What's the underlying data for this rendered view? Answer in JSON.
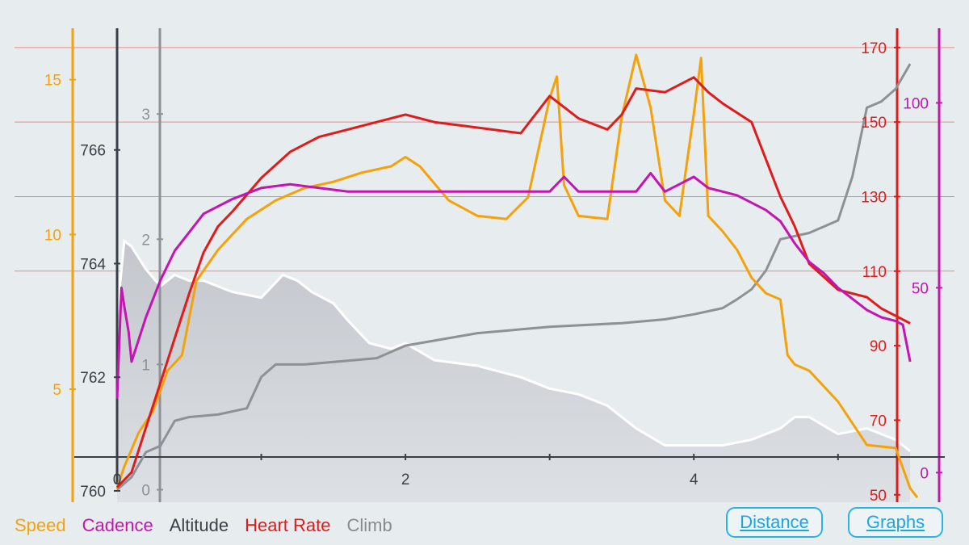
{
  "colors": {
    "speed": "#f5a20a",
    "cadence": "#c414b2",
    "altitude": "#3a3f47",
    "heart_rate": "#e01b1b",
    "climb": "#8a8a8a",
    "altitude_fill": "#c9ccd1",
    "accent": "#1aa6de"
  },
  "legend": {
    "speed": "Speed",
    "cadence": "Cadence",
    "altitude": "Altitude",
    "heart_rate": "Heart Rate",
    "climb": "Climb"
  },
  "buttons": {
    "distance": "Distance",
    "graphs": "Graphs"
  },
  "chart_data": {
    "type": "line",
    "xlim": [
      0,
      5.55
    ],
    "x_ticks": [
      "0",
      "2",
      "4"
    ],
    "x_tick_values": [
      0,
      2,
      4
    ],
    "axes": {
      "speed": {
        "ticks": [
          "5",
          "10",
          "15"
        ],
        "tick_values": [
          5,
          10,
          15
        ],
        "range": [
          1.35,
          16.4
        ]
      },
      "altitude": {
        "ticks": [
          "760",
          "762",
          "764",
          "766"
        ],
        "tick_values": [
          760,
          762,
          764,
          766
        ],
        "range": [
          759.8,
          768.0
        ]
      },
      "climb": {
        "ticks": [
          "0",
          "1",
          "2",
          "3"
        ],
        "tick_values": [
          0,
          1,
          2,
          3
        ],
        "range": [
          -0.1,
          3.62
        ]
      },
      "heart_rate": {
        "ticks": [
          "50",
          "70",
          "90",
          "110",
          "130",
          "150",
          "170"
        ],
        "tick_values": [
          50,
          70,
          90,
          110,
          130,
          150,
          170
        ],
        "range": [
          48,
          173
        ]
      },
      "cadence": {
        "ticks": [
          "0",
          "50",
          "100"
        ],
        "tick_values": [
          0,
          50,
          100
        ],
        "range": [
          -8,
          118
        ]
      }
    },
    "series": [
      {
        "name": "Altitude",
        "axis": "altitude",
        "x": [
          0,
          0.05,
          0.1,
          0.2,
          0.3,
          0.4,
          0.5,
          0.6,
          0.8,
          1.0,
          1.15,
          1.25,
          1.35,
          1.5,
          1.6,
          1.75,
          1.9,
          2.0,
          2.2,
          2.5,
          2.8,
          3.0,
          3.2,
          3.4,
          3.5,
          3.6,
          3.8,
          4.0,
          4.2,
          4.4,
          4.5,
          4.6,
          4.7,
          4.8,
          5.0,
          5.2,
          5.3,
          5.4,
          5.5
        ],
        "y": [
          763.1,
          764.4,
          764.3,
          763.9,
          763.6,
          763.8,
          763.7,
          763.7,
          763.5,
          763.4,
          763.8,
          763.7,
          763.5,
          763.3,
          763.0,
          762.6,
          762.5,
          762.6,
          762.3,
          762.2,
          762.0,
          761.8,
          761.7,
          761.5,
          761.3,
          761.1,
          760.8,
          760.8,
          760.8,
          760.9,
          761.0,
          761.1,
          761.3,
          761.3,
          761.0,
          761.1,
          761.0,
          760.9,
          760.7
        ]
      },
      {
        "name": "Climb",
        "axis": "climb",
        "x": [
          0,
          0.1,
          0.2,
          0.3,
          0.4,
          0.5,
          0.7,
          0.9,
          1.0,
          1.1,
          1.2,
          1.3,
          1.6,
          1.8,
          2.0,
          2.5,
          3.0,
          3.5,
          3.8,
          4.0,
          4.2,
          4.3,
          4.4,
          4.5,
          4.6,
          4.8,
          5.0,
          5.1,
          5.2,
          5.3,
          5.4,
          5.5
        ],
        "y": [
          0.0,
          0.1,
          0.3,
          0.35,
          0.55,
          0.58,
          0.6,
          0.65,
          0.9,
          1.0,
          1.0,
          1.0,
          1.03,
          1.05,
          1.15,
          1.25,
          1.3,
          1.33,
          1.36,
          1.4,
          1.45,
          1.52,
          1.6,
          1.75,
          2.0,
          2.05,
          2.15,
          2.5,
          3.05,
          3.1,
          3.2,
          3.4
        ]
      },
      {
        "name": "Speed",
        "axis": "speed",
        "x": [
          0,
          0.05,
          0.15,
          0.25,
          0.35,
          0.45,
          0.55,
          0.7,
          0.9,
          1.1,
          1.3,
          1.5,
          1.7,
          1.9,
          2.0,
          2.1,
          2.3,
          2.5,
          2.7,
          2.85,
          3.0,
          3.05,
          3.1,
          3.2,
          3.4,
          3.5,
          3.6,
          3.7,
          3.8,
          3.9,
          4.0,
          4.05,
          4.1,
          4.2,
          4.3,
          4.4,
          4.5,
          4.6,
          4.65,
          4.7,
          4.8,
          5.0,
          5.2,
          5.4,
          5.5,
          5.55
        ],
        "y": [
          1.8,
          2.5,
          3.6,
          4.3,
          5.6,
          6.1,
          8.5,
          9.5,
          10.5,
          11.1,
          11.5,
          11.7,
          12.0,
          12.2,
          12.5,
          12.2,
          11.1,
          10.6,
          10.5,
          11.2,
          14.4,
          15.1,
          11.6,
          10.6,
          10.5,
          13.8,
          15.8,
          14.1,
          11.1,
          10.6,
          13.9,
          15.7,
          10.6,
          10.1,
          9.5,
          8.6,
          8.1,
          7.9,
          6.1,
          5.8,
          5.6,
          4.6,
          3.2,
          3.1,
          1.8,
          1.5
        ]
      },
      {
        "name": "Heart Rate",
        "axis": "heart_rate",
        "x": [
          0,
          0.1,
          0.2,
          0.3,
          0.4,
          0.5,
          0.6,
          0.7,
          0.8,
          1.0,
          1.2,
          1.4,
          1.6,
          1.8,
          2.0,
          2.2,
          2.4,
          2.6,
          2.8,
          3.0,
          3.2,
          3.4,
          3.5,
          3.6,
          3.8,
          4.0,
          4.1,
          4.2,
          4.4,
          4.5,
          4.6,
          4.7,
          4.8,
          5.0,
          5.2,
          5.3,
          5.4,
          5.5
        ],
        "y": [
          52,
          56,
          68,
          80,
          92,
          104,
          115,
          122,
          126,
          135,
          142,
          146,
          148,
          150,
          152,
          150,
          149,
          148,
          147,
          157,
          151,
          148,
          152,
          159,
          158,
          162,
          158,
          155,
          150,
          140,
          130,
          122,
          112,
          105,
          103,
          100,
          98,
          96
        ]
      },
      {
        "name": "Cadence",
        "axis": "cadence",
        "x": [
          0,
          0.03,
          0.05,
          0.08,
          0.1,
          0.2,
          0.3,
          0.4,
          0.5,
          0.6,
          0.8,
          1.0,
          1.2,
          1.4,
          1.6,
          1.8,
          2.0,
          2.2,
          2.4,
          2.6,
          2.8,
          3.0,
          3.1,
          3.2,
          3.4,
          3.6,
          3.7,
          3.8,
          3.9,
          4.0,
          4.1,
          4.2,
          4.3,
          4.4,
          4.5,
          4.6,
          4.7,
          4.8,
          4.9,
          5.0,
          5.1,
          5.2,
          5.3,
          5.4,
          5.45,
          5.5
        ],
        "y": [
          20,
          50,
          45,
          38,
          30,
          42,
          52,
          60,
          65,
          70,
          74,
          77,
          78,
          77,
          76,
          76,
          76,
          76,
          76,
          76,
          76,
          76,
          80,
          76,
          76,
          76,
          81,
          76,
          78,
          80,
          77,
          76,
          75,
          73,
          71,
          68,
          62,
          57,
          54,
          50,
          47,
          44,
          42,
          41,
          40,
          30
        ]
      }
    ]
  }
}
